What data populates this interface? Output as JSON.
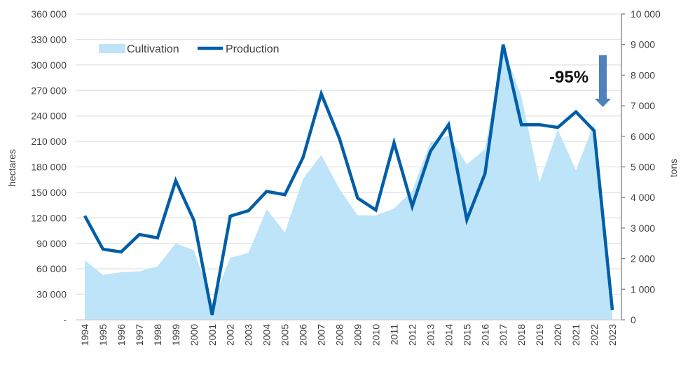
{
  "chart_data": {
    "type": "area+line",
    "categories": [
      "1994",
      "1995",
      "1996",
      "1997",
      "1998",
      "1999",
      "2000",
      "2001",
      "2002",
      "2003",
      "2004",
      "2005",
      "2006",
      "2007",
      "2008",
      "2009",
      "2010",
      "2011",
      "2012",
      "2013",
      "2014",
      "2015",
      "2016",
      "2017",
      "2018",
      "2019",
      "2020",
      "2021",
      "2022",
      "2023"
    ],
    "series": [
      {
        "name": "Cultivation",
        "type": "area",
        "axis": "left",
        "color": "#bde4f8",
        "values": [
          70000,
          53000,
          56000,
          57000,
          63000,
          90000,
          82000,
          20000,
          73000,
          79000,
          130000,
          103000,
          166000,
          194000,
          154000,
          123000,
          123000,
          131000,
          152000,
          209000,
          217000,
          183000,
          201000,
          320000,
          263000,
          162000,
          224000,
          176000,
          232000,
          5000
        ]
      },
      {
        "name": "Production",
        "type": "line",
        "axis": "right",
        "color": "#005ea8",
        "values": [
          3400,
          2310,
          2220,
          2790,
          2680,
          4550,
          3250,
          160,
          3390,
          3570,
          4200,
          4090,
          5310,
          7390,
          5930,
          3980,
          3590,
          5790,
          3710,
          5510,
          6380,
          3270,
          4780,
          9000,
          6380,
          6380,
          6290,
          6800,
          6180,
          320
        ]
      }
    ],
    "left_axis": {
      "label": "hectares",
      "range": [
        0,
        360000
      ],
      "ticks": [
        "-",
        "30 000",
        "60 000",
        "90 000",
        "120 000",
        "150 000",
        "180 000",
        "210 000",
        "240 000",
        "270 000",
        "300 000",
        "330 000",
        "360 000"
      ]
    },
    "right_axis": {
      "label": "tons",
      "range": [
        0,
        10000
      ],
      "ticks": [
        "0",
        "1 000",
        "2 000",
        "3 000",
        "4 000",
        "5 000",
        "6 000",
        "7 000",
        "8 000",
        "9 000",
        "10 000"
      ]
    },
    "legend": {
      "placement": "top-left",
      "items": [
        "Cultivation",
        "Production"
      ]
    },
    "annotation": {
      "text": "-95%",
      "arrow_color": "#4f81bd"
    },
    "grid": true
  }
}
